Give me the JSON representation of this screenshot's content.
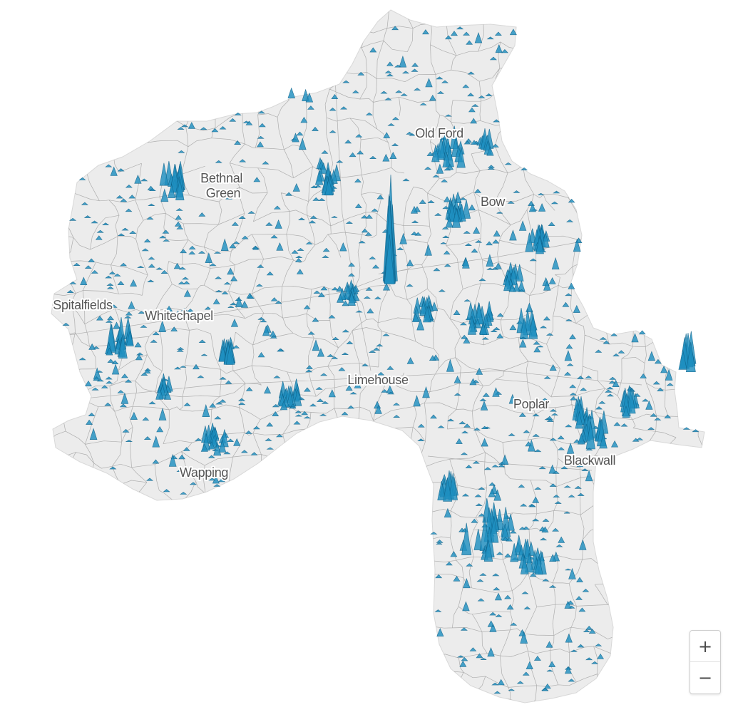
{
  "map": {
    "land_color": "#ececec",
    "boundary_color": "#9a9a9a",
    "spike_color": "#1f8fbf",
    "spike_dark": "#0b5f87",
    "labels": [
      {
        "id": "label-old-ford",
        "text": "Old Ford"
      },
      {
        "id": "label-bethnal-green",
        "lines": [
          "Bethnal",
          "Green"
        ]
      },
      {
        "id": "label-bow",
        "text": "Bow"
      },
      {
        "id": "label-spitalfields",
        "text": "Spitalfields"
      },
      {
        "id": "label-whitechapel",
        "text": "Whitechapel"
      },
      {
        "id": "label-limehouse",
        "text": "Limehouse"
      },
      {
        "id": "label-poplar",
        "text": "Poplar"
      },
      {
        "id": "label-blackwall",
        "text": "Blackwall"
      },
      {
        "id": "label-wapping",
        "text": "Wapping"
      }
    ]
  },
  "zoom": {
    "in_label": "+",
    "out_label": "−"
  }
}
